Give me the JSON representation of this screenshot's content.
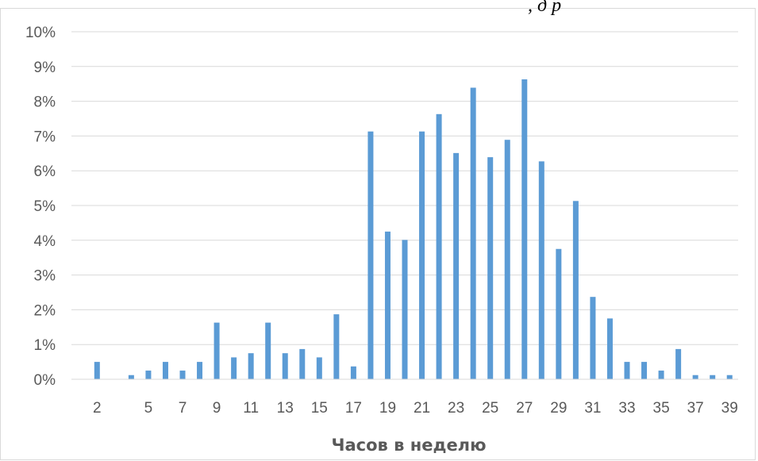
{
  "top_text": ", д  р",
  "chart_data": {
    "type": "bar",
    "title": "",
    "xlabel": "Часов в неделю",
    "ylabel": "",
    "ylim": [
      0,
      0.1
    ],
    "y_ticks": [
      0,
      0.01,
      0.02,
      0.03,
      0.04,
      0.05,
      0.06,
      0.07,
      0.08,
      0.09,
      0.1
    ],
    "y_tick_labels": [
      "0%",
      "1%",
      "2%",
      "3%",
      "4%",
      "5%",
      "6%",
      "7%",
      "8%",
      "9%",
      "10%"
    ],
    "categories": [
      "2",
      "4",
      "5",
      "6",
      "7",
      "8",
      "9",
      "10",
      "11",
      "12",
      "13",
      "14",
      "15",
      "16",
      "17",
      "18",
      "19",
      "20",
      "21",
      "22",
      "23",
      "24",
      "25",
      "26",
      "27",
      "28",
      "29",
      "30",
      "31",
      "32",
      "33",
      "34",
      "35",
      "36",
      "37",
      "38",
      "39"
    ],
    "x_tick_labels": [
      "2",
      "5",
      "7",
      "9",
      "11",
      "13",
      "15",
      "17",
      "19",
      "21",
      "23",
      "25",
      "27",
      "29",
      "31",
      "33",
      "35",
      "37",
      "39"
    ],
    "values": [
      0.005,
      0.0012,
      0.0025,
      0.005,
      0.0025,
      0.005,
      0.0163,
      0.0063,
      0.0075,
      0.0163,
      0.0075,
      0.0087,
      0.0063,
      0.0187,
      0.0037,
      0.0713,
      0.0425,
      0.0401,
      0.0713,
      0.0763,
      0.0651,
      0.0839,
      0.0639,
      0.0689,
      0.0863,
      0.0627,
      0.0375,
      0.0513,
      0.0237,
      0.0175,
      0.005,
      0.005,
      0.0025,
      0.0087,
      0.0012,
      0.0012,
      0.0012
    ],
    "bar_color": "#5b9bd5",
    "grid": true,
    "legend": "none"
  }
}
